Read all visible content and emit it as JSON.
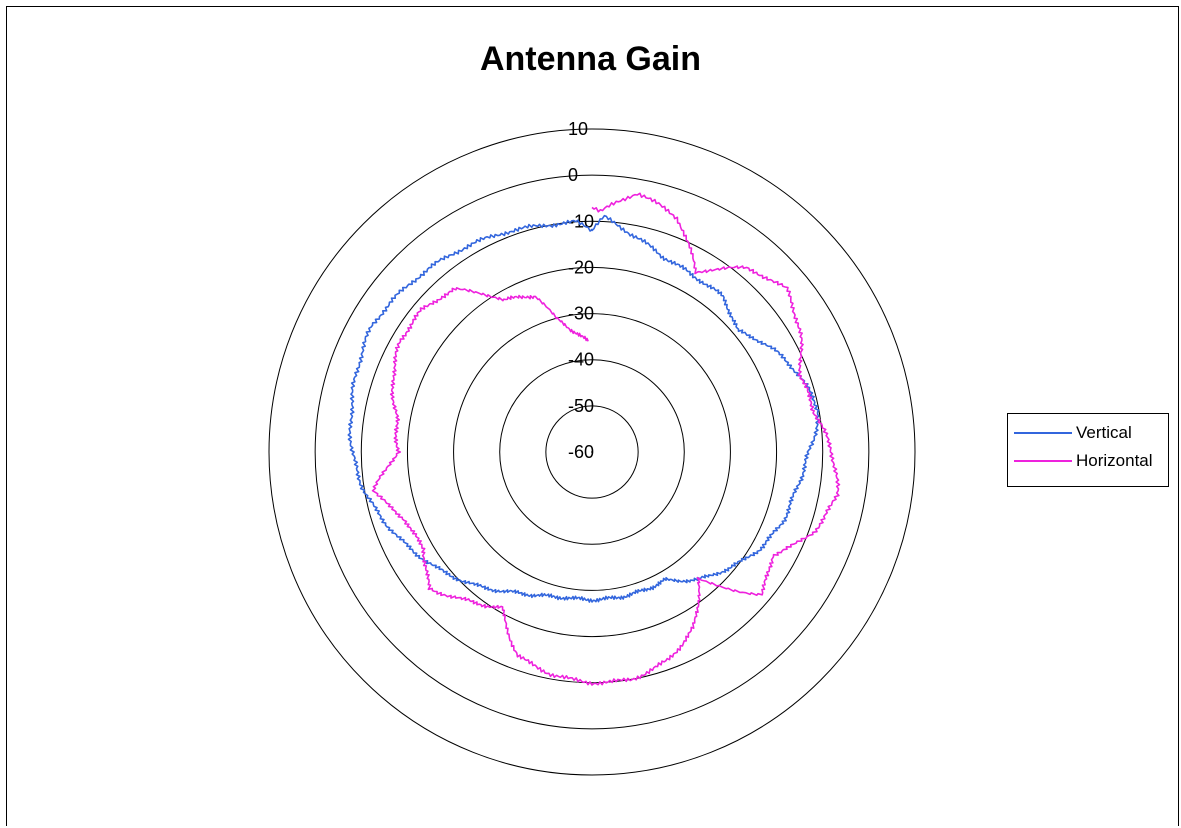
{
  "chart_data": {
    "type": "radar",
    "title": "Antenna Gain",
    "radial_axis": {
      "min": -60,
      "max": 10,
      "step": 10,
      "tick_labels": [
        "-60",
        "-50",
        "-40",
        "-30",
        "-20",
        "-10",
        "0",
        "10"
      ]
    },
    "legend_position": "right",
    "grid": true,
    "series": [
      {
        "name": "Vertical",
        "color": "#3366dd",
        "angles_deg": [
          0,
          3,
          10,
          20,
          30,
          40,
          50,
          60,
          70,
          80,
          90,
          100,
          110,
          120,
          130,
          140,
          150,
          160,
          170,
          180,
          190,
          200,
          210,
          220,
          230,
          240,
          250,
          260,
          270,
          280,
          290,
          300,
          310,
          320,
          330,
          340,
          350,
          356,
          360
        ],
        "values": [
          -12,
          -9,
          -12,
          -15,
          -16,
          -16,
          -19,
          -15,
          -12,
          -10,
          -13,
          -15,
          -16,
          -18,
          -21,
          -24,
          -28,
          -28,
          -28,
          -28,
          -28,
          -27,
          -25,
          -22,
          -19,
          -16,
          -13,
          -10,
          -8,
          -7,
          -6,
          -5,
          -6,
          -7,
          -8,
          -9,
          -10,
          -10,
          -12
        ]
      },
      {
        "name": "Horizontal",
        "color": "#ee22dd",
        "angles_deg": [
          0,
          2,
          5,
          10,
          20,
          30,
          40,
          50,
          60,
          70,
          80,
          90,
          100,
          110,
          120,
          130,
          140,
          150,
          160,
          170,
          180,
          190,
          200,
          210,
          220,
          230,
          240,
          250,
          260,
          270,
          280,
          290,
          300,
          310,
          320,
          330,
          340,
          345,
          350,
          355,
          358
        ],
        "values": [
          -7,
          -8,
          -6,
          -3,
          -6,
          -15,
          -8,
          -5,
          -8,
          -12,
          -11,
          -8,
          -6,
          -9,
          -15,
          -12,
          -24,
          -16,
          -12,
          -10,
          -10,
          -11,
          -13,
          -21,
          -18,
          -14,
          -18,
          -17,
          -12,
          -18,
          -17,
          -14,
          -12,
          -12,
          -14,
          -22,
          -24,
          -30,
          -33,
          -35,
          -36
        ]
      }
    ]
  }
}
